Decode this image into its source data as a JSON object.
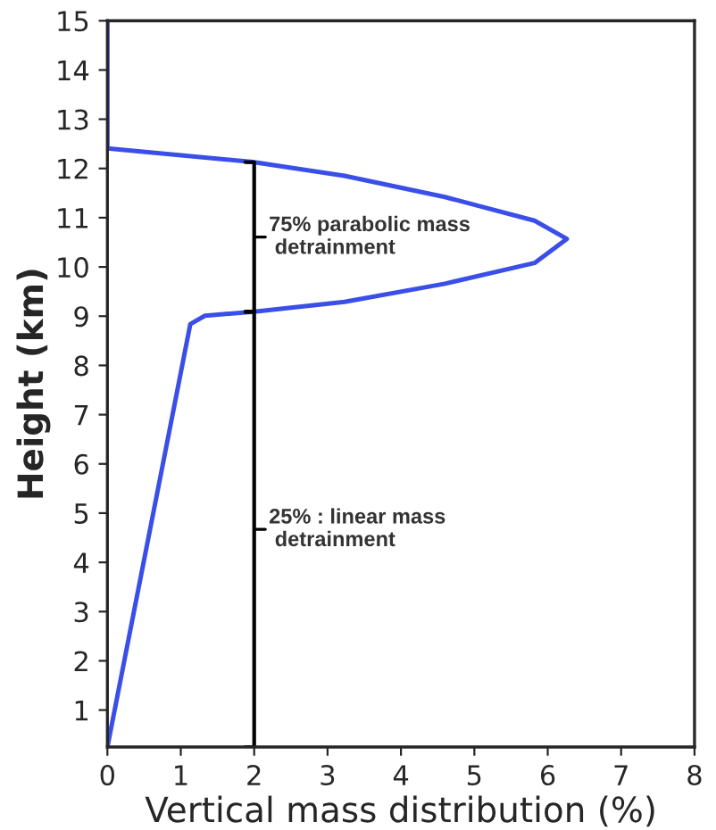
{
  "chart_data": {
    "type": "line",
    "xlabel": "Vertical mass distribution (%)",
    "ylabel": "Height (km)",
    "series": [
      {
        "color": "#3a4ee8",
        "x": [
          0,
          1.13,
          1.33,
          2.0,
          3.23,
          4.6,
          5.82,
          6.26,
          5.82,
          4.6,
          3.23,
          1.98,
          0,
          0
        ],
        "values": [
          0.25,
          8.84,
          9.01,
          9.09,
          9.29,
          9.66,
          10.08,
          10.57,
          10.94,
          11.42,
          11.85,
          12.13,
          12.41,
          15
        ]
      }
    ],
    "xlim": [
      0,
      8
    ],
    "ylim": [
      0.25,
      15
    ],
    "xticks": [
      0,
      1,
      2,
      3,
      4,
      5,
      6,
      7,
      8
    ],
    "yticks": [
      1,
      2,
      3,
      4,
      5,
      6,
      7,
      8,
      9,
      10,
      11,
      12,
      13,
      14,
      15
    ],
    "grid": false,
    "marker": "none",
    "line_style": "solid",
    "annotations": [
      "75% parabolic mass\n detrainment",
      "25% : linear mass\n detrainment"
    ]
  }
}
